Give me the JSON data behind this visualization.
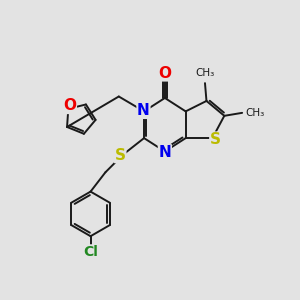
{
  "background_color": "#e3e3e3",
  "bond_color": "#1a1a1a",
  "atom_colors": {
    "N": "#0000ee",
    "O": "#ee0000",
    "S": "#bbbb00",
    "Cl": "#228822",
    "C": "#1a1a1a"
  },
  "lw": 1.4,
  "figsize": [
    3.0,
    3.0
  ],
  "dpi": 100,
  "xlim": [
    0,
    10
  ],
  "ylim": [
    0,
    10
  ]
}
